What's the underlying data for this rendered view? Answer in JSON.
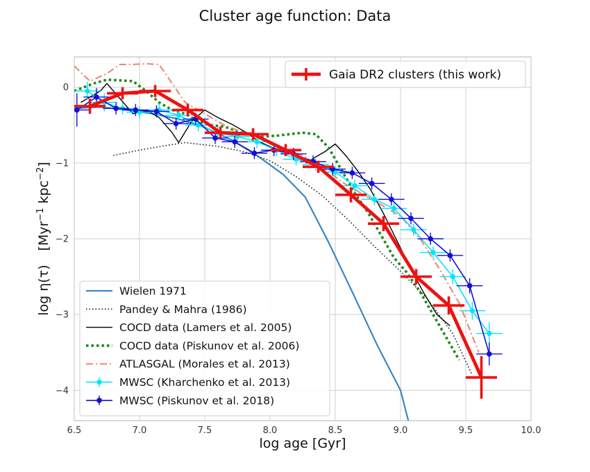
{
  "chart_data": {
    "type": "line",
    "title": "Cluster age function: Data",
    "xlabel": "log age [Gyr]",
    "ylabel_main": "log η(τ)",
    "ylabel_unit": "[Myr",
    "ylabel_unit_sup1": "−1",
    "ylabel_unit_mid": " kpc",
    "ylabel_unit_sup2": "−2",
    "ylabel_unit_end": "]",
    "xlim": [
      6.5,
      10.0
    ],
    "ylim": [
      -4.4,
      0.4
    ],
    "x_ticks": [
      6.5,
      7.0,
      7.5,
      8.0,
      8.5,
      9.0,
      9.5,
      10.0
    ],
    "x_tick_labels": [
      "6.5",
      "7.0",
      "7.5",
      "8.0",
      "8.5",
      "9.0",
      "9.5",
      "10.0"
    ],
    "y_ticks": [
      0,
      -1,
      -2,
      -3,
      -4
    ],
    "y_tick_labels": [
      "0",
      "−1",
      "−2",
      "−3",
      "−4"
    ],
    "grid": true,
    "legend_position": "lower-left",
    "series": [
      {
        "name": "Wielen 1971",
        "style": "solid",
        "color": "#3a86c4",
        "width": 2.2,
        "points": [
          [
            6.5,
            -0.28
          ],
          [
            6.7,
            -0.26
          ],
          [
            6.9,
            -0.3
          ],
          [
            7.1,
            -0.35
          ],
          [
            7.3,
            -0.42
          ],
          [
            7.5,
            -0.53
          ],
          [
            7.7,
            -0.69
          ],
          [
            7.9,
            -0.9
          ],
          [
            8.1,
            -1.15
          ],
          [
            8.27,
            -1.45
          ],
          [
            8.45,
            -2.05
          ],
          [
            8.63,
            -2.7
          ],
          [
            8.82,
            -3.4
          ],
          [
            9.0,
            -4.0
          ],
          [
            9.06,
            -4.4
          ]
        ]
      },
      {
        "name": "Pandey & Mahra (1986)",
        "style": "dotted",
        "color": "#111111",
        "width": 1.6,
        "points": [
          [
            6.8,
            -0.9
          ],
          [
            7.0,
            -0.83
          ],
          [
            7.2,
            -0.77
          ],
          [
            7.35,
            -0.73
          ],
          [
            7.6,
            -0.78
          ],
          [
            7.8,
            -0.85
          ],
          [
            8.0,
            -0.97
          ],
          [
            8.2,
            -1.18
          ],
          [
            8.4,
            -1.43
          ],
          [
            8.6,
            -1.75
          ],
          [
            8.8,
            -2.1
          ],
          [
            9.0,
            -2.43
          ],
          [
            9.2,
            -2.78
          ],
          [
            9.4,
            -3.25
          ],
          [
            9.55,
            -3.8
          ]
        ]
      },
      {
        "name": "COCD data (Lamers et al. 2005)",
        "style": "solid",
        "color": "#000000",
        "width": 1.4,
        "points": [
          [
            6.55,
            -0.2
          ],
          [
            6.7,
            -0.05
          ],
          [
            6.75,
            0.05
          ],
          [
            6.85,
            -0.15
          ],
          [
            6.95,
            -0.35
          ],
          [
            7.05,
            -0.3
          ],
          [
            7.15,
            -0.4
          ],
          [
            7.25,
            -0.6
          ],
          [
            7.3,
            -0.73
          ],
          [
            7.4,
            -0.45
          ],
          [
            7.5,
            -0.3
          ],
          [
            7.6,
            -0.4
          ],
          [
            7.72,
            -0.5
          ],
          [
            7.82,
            -0.6
          ],
          [
            7.92,
            -0.72
          ],
          [
            8.02,
            -0.8
          ],
          [
            8.12,
            -0.85
          ],
          [
            8.22,
            -0.9
          ],
          [
            8.28,
            -1.0
          ],
          [
            8.35,
            -0.92
          ],
          [
            8.42,
            -0.85
          ],
          [
            8.5,
            -0.75
          ],
          [
            8.58,
            -0.9
          ],
          [
            8.67,
            -1.1
          ],
          [
            8.77,
            -1.35
          ],
          [
            8.88,
            -1.7
          ],
          [
            8.98,
            -2.05
          ],
          [
            9.08,
            -2.4
          ],
          [
            9.18,
            -2.72
          ],
          [
            9.28,
            -3.0
          ],
          [
            9.38,
            -3.15
          ]
        ]
      },
      {
        "name": "COCD data (Piskunov et al. 2006)",
        "style": "dotted-thick",
        "color": "#1a8a1a",
        "width": 3.6,
        "points": [
          [
            6.5,
            -0.05
          ],
          [
            6.65,
            0.05
          ],
          [
            6.75,
            0.1
          ],
          [
            6.85,
            0.09
          ],
          [
            6.95,
            0.08
          ],
          [
            7.05,
            -0.05
          ],
          [
            7.15,
            -0.2
          ],
          [
            7.25,
            -0.3
          ],
          [
            7.35,
            -0.35
          ],
          [
            7.45,
            -0.45
          ],
          [
            7.55,
            -0.5
          ],
          [
            7.65,
            -0.52
          ],
          [
            7.75,
            -0.58
          ],
          [
            7.85,
            -0.62
          ],
          [
            7.95,
            -0.65
          ],
          [
            8.05,
            -0.64
          ],
          [
            8.15,
            -0.62
          ],
          [
            8.25,
            -0.6
          ],
          [
            8.35,
            -0.62
          ],
          [
            8.45,
            -0.8
          ],
          [
            8.55,
            -1.1
          ],
          [
            8.65,
            -1.4
          ],
          [
            8.75,
            -1.65
          ],
          [
            8.85,
            -1.95
          ],
          [
            8.95,
            -2.25
          ],
          [
            9.05,
            -2.45
          ],
          [
            9.15,
            -2.7
          ],
          [
            9.25,
            -3.0
          ],
          [
            9.35,
            -3.3
          ],
          [
            9.45,
            -3.6
          ]
        ]
      },
      {
        "name": "ATLASGAL (Morales et al. 2013)",
        "style": "dashdot",
        "color": "#f08070",
        "width": 2.0,
        "points": [
          [
            6.5,
            0.28
          ],
          [
            6.62,
            0.08
          ],
          [
            6.75,
            0.18
          ],
          [
            6.85,
            0.3
          ],
          [
            6.95,
            0.3
          ],
          [
            7.05,
            0.31
          ],
          [
            7.15,
            0.3
          ],
          [
            7.25,
            0.05
          ],
          [
            7.35,
            -0.2
          ],
          [
            7.5,
            -0.35
          ],
          [
            7.65,
            -0.5
          ],
          [
            7.8,
            -0.6
          ],
          [
            7.95,
            -0.7
          ],
          [
            8.1,
            -0.8
          ],
          [
            8.25,
            -0.9
          ],
          [
            8.4,
            -1.05
          ],
          [
            8.55,
            -1.25
          ],
          [
            8.7,
            -1.4
          ],
          [
            8.85,
            -1.55
          ],
          [
            9.0,
            -1.7
          ],
          [
            9.15,
            -2.0
          ],
          [
            9.3,
            -2.4
          ],
          [
            9.45,
            -2.85
          ],
          [
            9.6,
            -3.5
          ]
        ]
      }
    ],
    "errorbar_series": [
      {
        "name": "MWSC (Kharchenko et al. 2013)",
        "color": "#00e5ff",
        "line_width": 1.6,
        "marker_r": 3.6,
        "points": [
          [
            6.6,
            -0.05,
            0.1,
            0.12
          ],
          [
            6.73,
            -0.2,
            0.1,
            0.12
          ],
          [
            6.87,
            -0.28,
            0.1,
            0.08
          ],
          [
            7.0,
            -0.33,
            0.1,
            0.08
          ],
          [
            7.15,
            -0.3,
            0.1,
            0.08
          ],
          [
            7.3,
            -0.37,
            0.1,
            0.08
          ],
          [
            7.45,
            -0.5,
            0.1,
            0.08
          ],
          [
            7.6,
            -0.6,
            0.1,
            0.08
          ],
          [
            7.75,
            -0.65,
            0.1,
            0.08
          ],
          [
            7.9,
            -0.72,
            0.1,
            0.08
          ],
          [
            8.05,
            -0.83,
            0.1,
            0.08
          ],
          [
            8.2,
            -0.95,
            0.1,
            0.08
          ],
          [
            8.35,
            -1.02,
            0.1,
            0.08
          ],
          [
            8.5,
            -1.12,
            0.1,
            0.08
          ],
          [
            8.65,
            -1.3,
            0.1,
            0.08
          ],
          [
            8.8,
            -1.48,
            0.1,
            0.08
          ],
          [
            8.95,
            -1.6,
            0.1,
            0.08
          ],
          [
            9.1,
            -1.88,
            0.1,
            0.08
          ],
          [
            9.25,
            -2.18,
            0.1,
            0.08
          ],
          [
            9.4,
            -2.5,
            0.1,
            0.1
          ],
          [
            9.55,
            -2.95,
            0.1,
            0.12
          ],
          [
            9.68,
            -3.25,
            0.1,
            0.15
          ]
        ]
      },
      {
        "name": "MWSC (Piskunov et al. 2018)",
        "color": "#1010d8",
        "line_width": 1.6,
        "marker_r": 3.8,
        "points": [
          [
            6.52,
            -0.3,
            0.1,
            0.22
          ],
          [
            6.67,
            -0.13,
            0.1,
            0.12
          ],
          [
            6.82,
            -0.28,
            0.1,
            0.08
          ],
          [
            6.97,
            -0.3,
            0.1,
            0.08
          ],
          [
            7.13,
            -0.32,
            0.1,
            0.08
          ],
          [
            7.28,
            -0.48,
            0.1,
            0.08
          ],
          [
            7.43,
            -0.42,
            0.1,
            0.08
          ],
          [
            7.58,
            -0.67,
            0.1,
            0.08
          ],
          [
            7.73,
            -0.72,
            0.1,
            0.08
          ],
          [
            7.88,
            -0.87,
            0.1,
            0.08
          ],
          [
            8.03,
            -0.83,
            0.1,
            0.08
          ],
          [
            8.18,
            -0.88,
            0.1,
            0.08
          ],
          [
            8.33,
            -0.98,
            0.1,
            0.08
          ],
          [
            8.48,
            -1.08,
            0.1,
            0.08
          ],
          [
            8.63,
            -1.13,
            0.1,
            0.08
          ],
          [
            8.78,
            -1.27,
            0.1,
            0.08
          ],
          [
            8.93,
            -1.48,
            0.1,
            0.08
          ],
          [
            9.08,
            -1.73,
            0.1,
            0.08
          ],
          [
            9.23,
            -2.0,
            0.1,
            0.08
          ],
          [
            9.38,
            -2.22,
            0.1,
            0.08
          ],
          [
            9.53,
            -2.62,
            0.1,
            0.1
          ],
          [
            9.68,
            -3.52,
            0.1,
            0.15
          ]
        ]
      },
      {
        "name": "Gaia DR2 clusters (this work)",
        "color": "#ee1111",
        "line_width": 4.8,
        "marker_r": 0,
        "points": [
          [
            6.62,
            -0.25,
            0.12,
            0.1
          ],
          [
            6.87,
            -0.08,
            0.12,
            0.08
          ],
          [
            7.12,
            -0.05,
            0.12,
            0.08
          ],
          [
            7.37,
            -0.3,
            0.12,
            0.08
          ],
          [
            7.62,
            -0.6,
            0.12,
            0.08
          ],
          [
            7.87,
            -0.62,
            0.12,
            0.08
          ],
          [
            8.12,
            -0.83,
            0.12,
            0.08
          ],
          [
            8.37,
            -1.05,
            0.12,
            0.08
          ],
          [
            8.62,
            -1.42,
            0.12,
            0.1
          ],
          [
            8.87,
            -1.8,
            0.12,
            0.1
          ],
          [
            9.12,
            -2.5,
            0.12,
            0.1
          ],
          [
            9.37,
            -2.88,
            0.12,
            0.12
          ],
          [
            9.62,
            -3.83,
            0.12,
            0.28
          ]
        ]
      }
    ],
    "legend_main": [
      "Wielen 1971",
      "Pandey & Mahra (1986)",
      "COCD data (Lamers et al. 2005)",
      "COCD data (Piskunov et al. 2006)",
      "ATLASGAL (Morales et al. 2013)",
      "MWSC (Kharchenko et al. 2013)",
      "MWSC (Piskunov et al. 2018)"
    ],
    "legend_top": "Gaia DR2 clusters (this work)"
  }
}
